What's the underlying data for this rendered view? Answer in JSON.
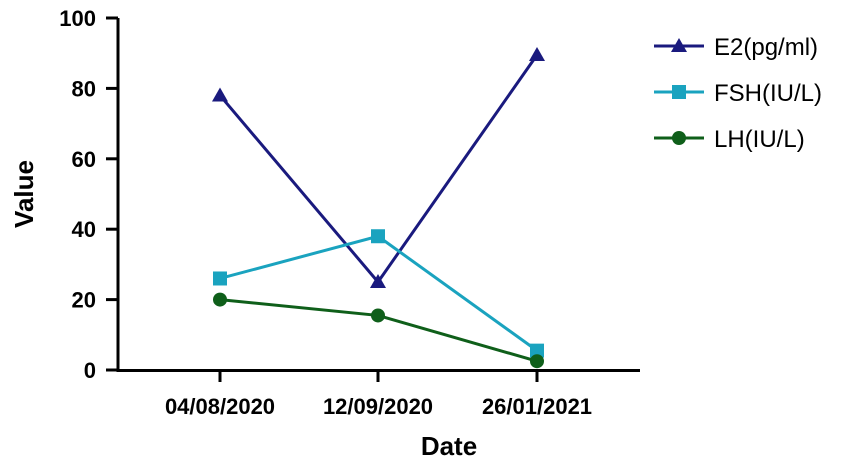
{
  "chart_data": {
    "type": "line",
    "title": "",
    "xlabel": "Date",
    "ylabel": "Value",
    "categories": [
      "04/08/2020",
      "12/09/2020",
      "26/01/2021"
    ],
    "ylim": [
      0,
      100
    ],
    "yticks": [
      0,
      20,
      40,
      60,
      80,
      100
    ],
    "grid": false,
    "legend": "right",
    "series": [
      {
        "name": "E2(pg/ml)",
        "values": [
          78,
          25,
          89.5
        ],
        "color": "#1a1a7e",
        "marker": "triangle"
      },
      {
        "name": "FSH(IU/L)",
        "values": [
          26,
          38,
          5.5
        ],
        "color": "#1aa3bf",
        "marker": "square"
      },
      {
        "name": "LH(IU/L)",
        "values": [
          20,
          15.5,
          2.5
        ],
        "color": "#0f5f1a",
        "marker": "circle"
      }
    ]
  }
}
